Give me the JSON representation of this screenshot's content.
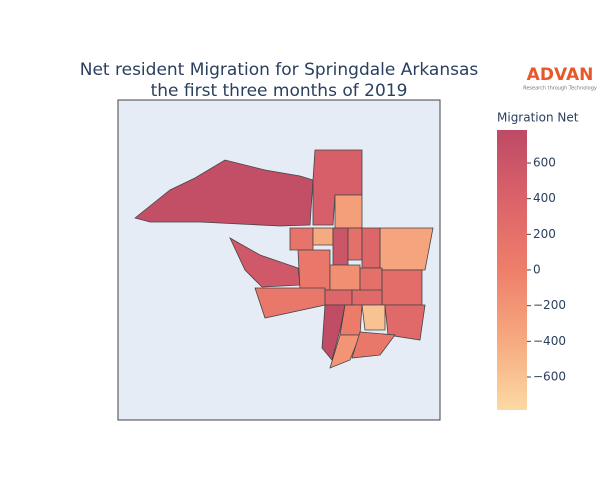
{
  "chart_data": {
    "type": "choropleth",
    "title": [
      "Net resident Migration for Springdale Arkansas",
      "the first three months of 2019"
    ],
    "values": [
      700,
      450,
      -300,
      -350,
      550,
      150,
      -400,
      600,
      200,
      350,
      100,
      -150,
      200,
      250,
      100,
      350,
      300,
      750,
      50,
      -600,
      300,
      -200,
      100
    ],
    "colorscale": [
      "#fcd9a3",
      "#f6a97f",
      "#ee7f6a",
      "#db6369",
      "#bd4a66"
    ],
    "colorbar": {
      "title": "Migration Net",
      "range": [
        -785,
        785
      ],
      "ticks": [
        600,
        400,
        200,
        0,
        {
          "value": -200,
          "label": "−200"
        },
        {
          "value": -400,
          "label": "−400"
        },
        {
          "value": -600,
          "label": "−600"
        }
      ]
    }
  },
  "logo": {
    "text": "ADVAN",
    "tagline": "Research through Technology"
  }
}
